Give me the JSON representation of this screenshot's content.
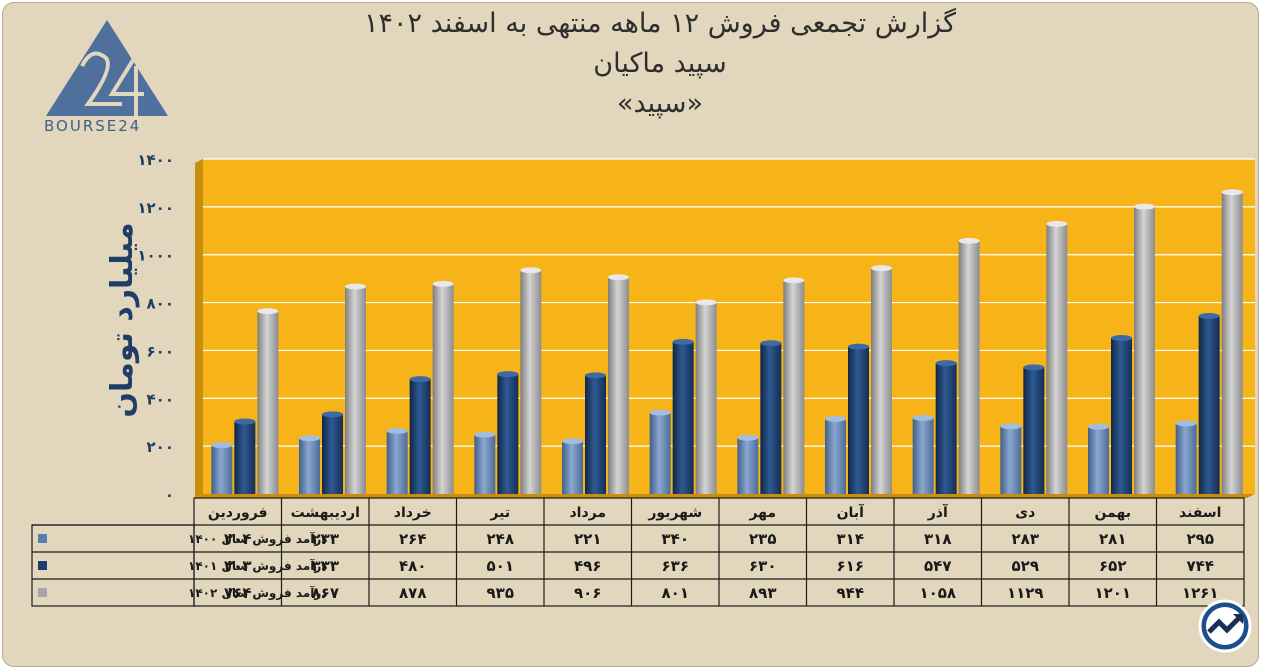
{
  "title": {
    "line1": "گزارش تجمعی فروش ۱۲ ماهه منتهی به اسفند ۱۴۰۲",
    "line2": "سپید ماکیان",
    "line3": "«سپید»"
  },
  "logo": {
    "text": "BOURSE24",
    "mark": "24"
  },
  "colors": {
    "background": "#e2d6bd",
    "plot": "#f6b418",
    "series1400": "#5a7ca8",
    "series1401": "#1f3d6b",
    "series1402": "#a6a6a6"
  },
  "chart_data": {
    "type": "bar",
    "ylabel": "میلیارد تومان",
    "ylim": [
      0,
      1400
    ],
    "yticks": [
      "۰",
      "۲۰۰",
      "۴۰۰",
      "۶۰۰",
      "۸۰۰",
      "۱۰۰۰",
      "۱۲۰۰",
      "۱۴۰۰"
    ],
    "ytick_values": [
      0,
      200,
      400,
      600,
      800,
      1000,
      1200,
      1400
    ],
    "categories": [
      "اسفند",
      "بهمن",
      "دی",
      "آذر",
      "آبان",
      "مهر",
      "شهریور",
      "مرداد",
      "تیر",
      "خرداد",
      "اردیبهشت",
      "فروردین"
    ],
    "series": [
      {
        "name": "درآمد فروش سال ۱۴۰۰",
        "values": [
          295,
          281,
          283,
          318,
          314,
          235,
          340,
          221,
          248,
          264,
          233,
          204
        ],
        "labels": [
          "۲۹۵",
          "۲۸۱",
          "۲۸۳",
          "۳۱۸",
          "۳۱۴",
          "۲۳۵",
          "۳۴۰",
          "۲۲۱",
          "۲۴۸",
          "۲۶۴",
          "۲۳۳",
          "۲۰۴"
        ]
      },
      {
        "name": "درآمد فروش سال ۱۴۰۱",
        "values": [
          744,
          652,
          529,
          547,
          616,
          630,
          636,
          496,
          501,
          480,
          333,
          303
        ],
        "labels": [
          "۷۴۴",
          "۶۵۲",
          "۵۲۹",
          "۵۴۷",
          "۶۱۶",
          "۶۳۰",
          "۶۳۶",
          "۴۹۶",
          "۵۰۱",
          "۴۸۰",
          "۳۳۳",
          "۳۰۳"
        ]
      },
      {
        "name": "درآمد فروش سال ۱۴۰۲",
        "values": [
          1261,
          1201,
          1129,
          1058,
          944,
          893,
          801,
          906,
          935,
          878,
          867,
          764
        ],
        "labels": [
          "۱۲۶۱",
          "۱۲۰۱",
          "۱۱۲۹",
          "۱۰۵۸",
          "۹۴۴",
          "۸۹۳",
          "۸۰۱",
          "۹۰۶",
          "۹۳۵",
          "۸۷۸",
          "۸۶۷",
          "۷۶۴"
        ]
      }
    ]
  }
}
